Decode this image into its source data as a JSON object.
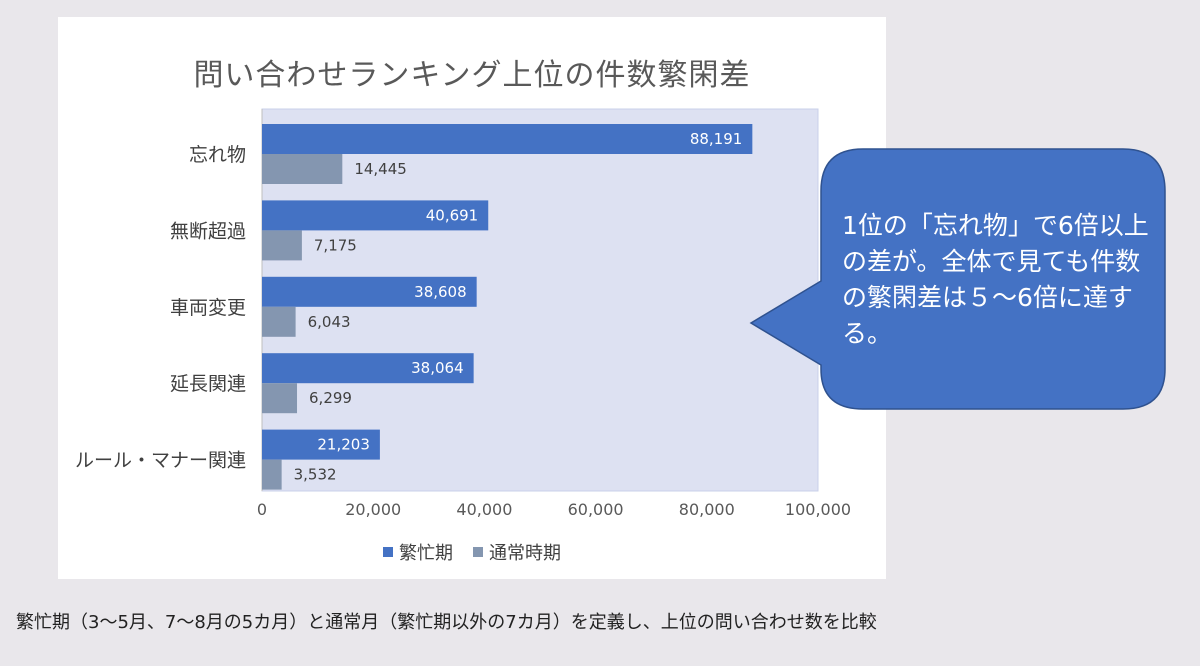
{
  "chart_data": {
    "type": "bar",
    "orientation": "horizontal",
    "title": "問い合わせランキング上位の件数繁閑差",
    "categories": [
      "忘れ物",
      "無断超過",
      "車両変更",
      "延長関連",
      "ルール・マナー関連"
    ],
    "series": [
      {
        "name": "繁忙期",
        "values": [
          88191,
          40691,
          38608,
          38064,
          21203
        ],
        "labels": [
          "88,191",
          "40,691",
          "38,608",
          "38,064",
          "21,203"
        ],
        "color": "#4472c4"
      },
      {
        "name": "通常時期",
        "values": [
          14445,
          7175,
          6043,
          6299,
          3532
        ],
        "labels": [
          "14,445",
          "7,175",
          "6,043",
          "6,299",
          "3,532"
        ],
        "color": "#8496b0"
      }
    ],
    "xlim": [
      0,
      100000
    ],
    "ticks": [
      0,
      20000,
      40000,
      60000,
      80000,
      100000
    ],
    "tick_labels": [
      "0",
      "20,000",
      "40,000",
      "60,000",
      "80,000",
      "100,000"
    ],
    "legend": "bottom",
    "grid": false,
    "plot_area_color": "#dde1f2"
  },
  "callout": {
    "text": "1位の「忘れ物」で6倍以上の差が。全体で見ても件数の繁閑差は５～6倍に達する。",
    "color": "#4472c4"
  },
  "footnote": "繁忙期（3～5月、7～8月の5カ月）と通常月（繁忙期以外の7カ月）を定義し、上位の問い合わせ数を比較"
}
